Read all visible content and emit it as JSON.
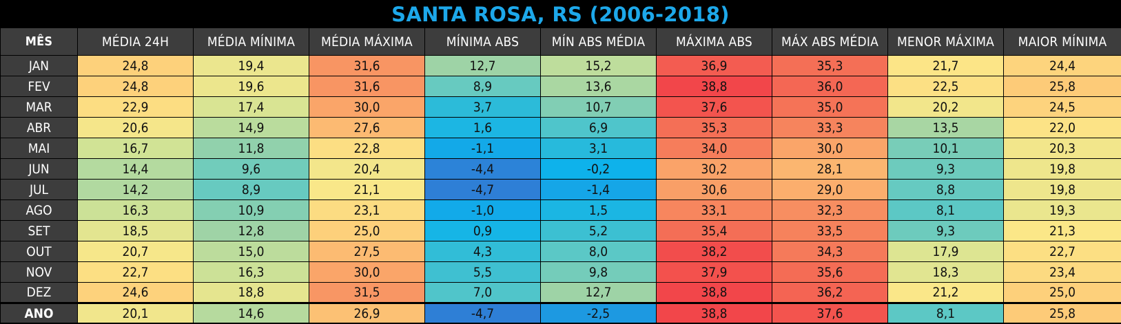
{
  "chart_data": {
    "type": "table",
    "title": "SANTA ROSA, RS (2006-2018)",
    "columns": [
      "MÊS",
      "MÉDIA 24H",
      "MÉDIA MÍNIMA",
      "MÉDIA MÁXIMA",
      "MÍNIMA ABS",
      "MÍN ABS MÉDIA",
      "MÁXIMA ABS",
      "MÁX ABS MÉDIA",
      "MENOR MÁXIMA",
      "MAIOR MÍNIMA"
    ],
    "rows": [
      {
        "month": "JAN",
        "values": [
          "24,8",
          "19,4",
          "31,6",
          "12,7",
          "15,2",
          "36,9",
          "35,3",
          "21,7",
          "24,4"
        ]
      },
      {
        "month": "FEV",
        "values": [
          "24,8",
          "19,6",
          "31,6",
          "8,9",
          "13,6",
          "38,8",
          "36,0",
          "22,5",
          "25,8"
        ]
      },
      {
        "month": "MAR",
        "values": [
          "22,9",
          "17,4",
          "30,0",
          "3,7",
          "10,7",
          "37,6",
          "35,0",
          "20,2",
          "24,5"
        ]
      },
      {
        "month": "ABR",
        "values": [
          "20,6",
          "14,9",
          "27,6",
          "1,6",
          "6,9",
          "35,3",
          "33,3",
          "13,5",
          "22,0"
        ]
      },
      {
        "month": "MAI",
        "values": [
          "16,7",
          "11,8",
          "22,8",
          "-1,1",
          "3,1",
          "34,0",
          "30,0",
          "10,1",
          "20,3"
        ]
      },
      {
        "month": "JUN",
        "values": [
          "14,4",
          "9,6",
          "20,4",
          "-4,4",
          "-0,2",
          "30,2",
          "28,1",
          "9,3",
          "19,8"
        ]
      },
      {
        "month": "JUL",
        "values": [
          "14,2",
          "8,9",
          "21,1",
          "-4,7",
          "-1,4",
          "30,6",
          "29,0",
          "8,8",
          "19,8"
        ]
      },
      {
        "month": "AGO",
        "values": [
          "16,3",
          "10,9",
          "23,1",
          "-1,0",
          "1,5",
          "33,1",
          "32,3",
          "8,1",
          "19,3"
        ]
      },
      {
        "month": "SET",
        "values": [
          "18,5",
          "12,8",
          "25,0",
          "0,9",
          "5,2",
          "35,4",
          "33,5",
          "9,3",
          "21,3"
        ]
      },
      {
        "month": "OUT",
        "values": [
          "20,7",
          "15,0",
          "27,5",
          "4,3",
          "8,0",
          "38,2",
          "34,3",
          "17,9",
          "22,7"
        ]
      },
      {
        "month": "NOV",
        "values": [
          "22,7",
          "16,3",
          "30,0",
          "5,5",
          "9,8",
          "37,9",
          "35,6",
          "18,3",
          "23,4"
        ]
      },
      {
        "month": "DEZ",
        "values": [
          "24,6",
          "18,8",
          "31,5",
          "7,0",
          "12,7",
          "38,8",
          "36,2",
          "21,2",
          "25,0"
        ]
      },
      {
        "month": "ANO",
        "values": [
          "20,1",
          "14,6",
          "26,9",
          "-4,7",
          "-2,5",
          "38,8",
          "37,6",
          "8,1",
          "25,8"
        ]
      }
    ],
    "colors": {
      "title": "#1DA8EA",
      "header_bg": "#3D3D3D",
      "header_text": "#FFFFFF",
      "background": "#000000",
      "scale": [
        "#2E7FD6",
        "#0DB2EC",
        "#2EBCD8",
        "#5FC9C4",
        "#9ED3A6",
        "#D6E494",
        "#FCE788",
        "#FDCB78",
        "#FAA469",
        "#F57959",
        "#F2464A"
      ]
    }
  }
}
